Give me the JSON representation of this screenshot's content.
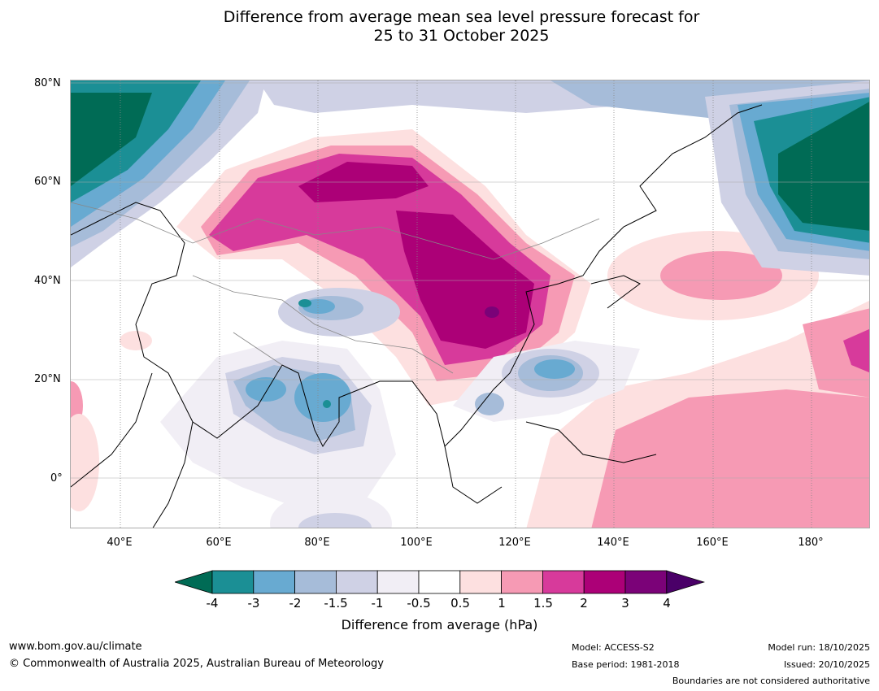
{
  "title": {
    "line1": "Difference from average mean sea level pressure forecast for",
    "line2": "25 to 31 October 2025"
  },
  "map": {
    "lat_labels": [
      "80°N",
      "60°N",
      "40°N",
      "20°N",
      "0°"
    ],
    "lon_labels": [
      "40°E",
      "60°E",
      "80°E",
      "100°E",
      "120°E",
      "140°E",
      "160°E",
      "180°"
    ],
    "lat_range": [
      -10,
      80
    ],
    "lon_range": [
      30,
      192
    ]
  },
  "colorbar": {
    "title": "Difference from average (hPa)",
    "ticks": [
      "-4",
      "-3",
      "-2",
      "-1.5",
      "-1",
      "-0.5",
      "0.5",
      "1",
      "1.5",
      "2",
      "3",
      "4"
    ],
    "colors": {
      "under": "#006b55",
      "c1": "#1b8f95",
      "c2": "#68aad1",
      "c3": "#a6bcd9",
      "c4": "#cfd1e5",
      "c5": "#f1eef5",
      "c6": "#ffffff",
      "c7": "#fde0e0",
      "c8": "#f69ab4",
      "c9": "#d73a9b",
      "c10": "#ac0077",
      "c11": "#7b0278",
      "over": "#4a0068"
    }
  },
  "footer": {
    "website": "www.bom.gov.au/climate",
    "copyright": "© Commonwealth of Australia 2025, Australian Bureau of Meteorology",
    "model": "Model: ACCESS-S2",
    "base_period": "Base period: 1981-2018",
    "model_run": "Model run: 18/10/2025",
    "issued": "Issued: 20/10/2025",
    "disclaimer": "Boundaries are not considered authoritative"
  }
}
